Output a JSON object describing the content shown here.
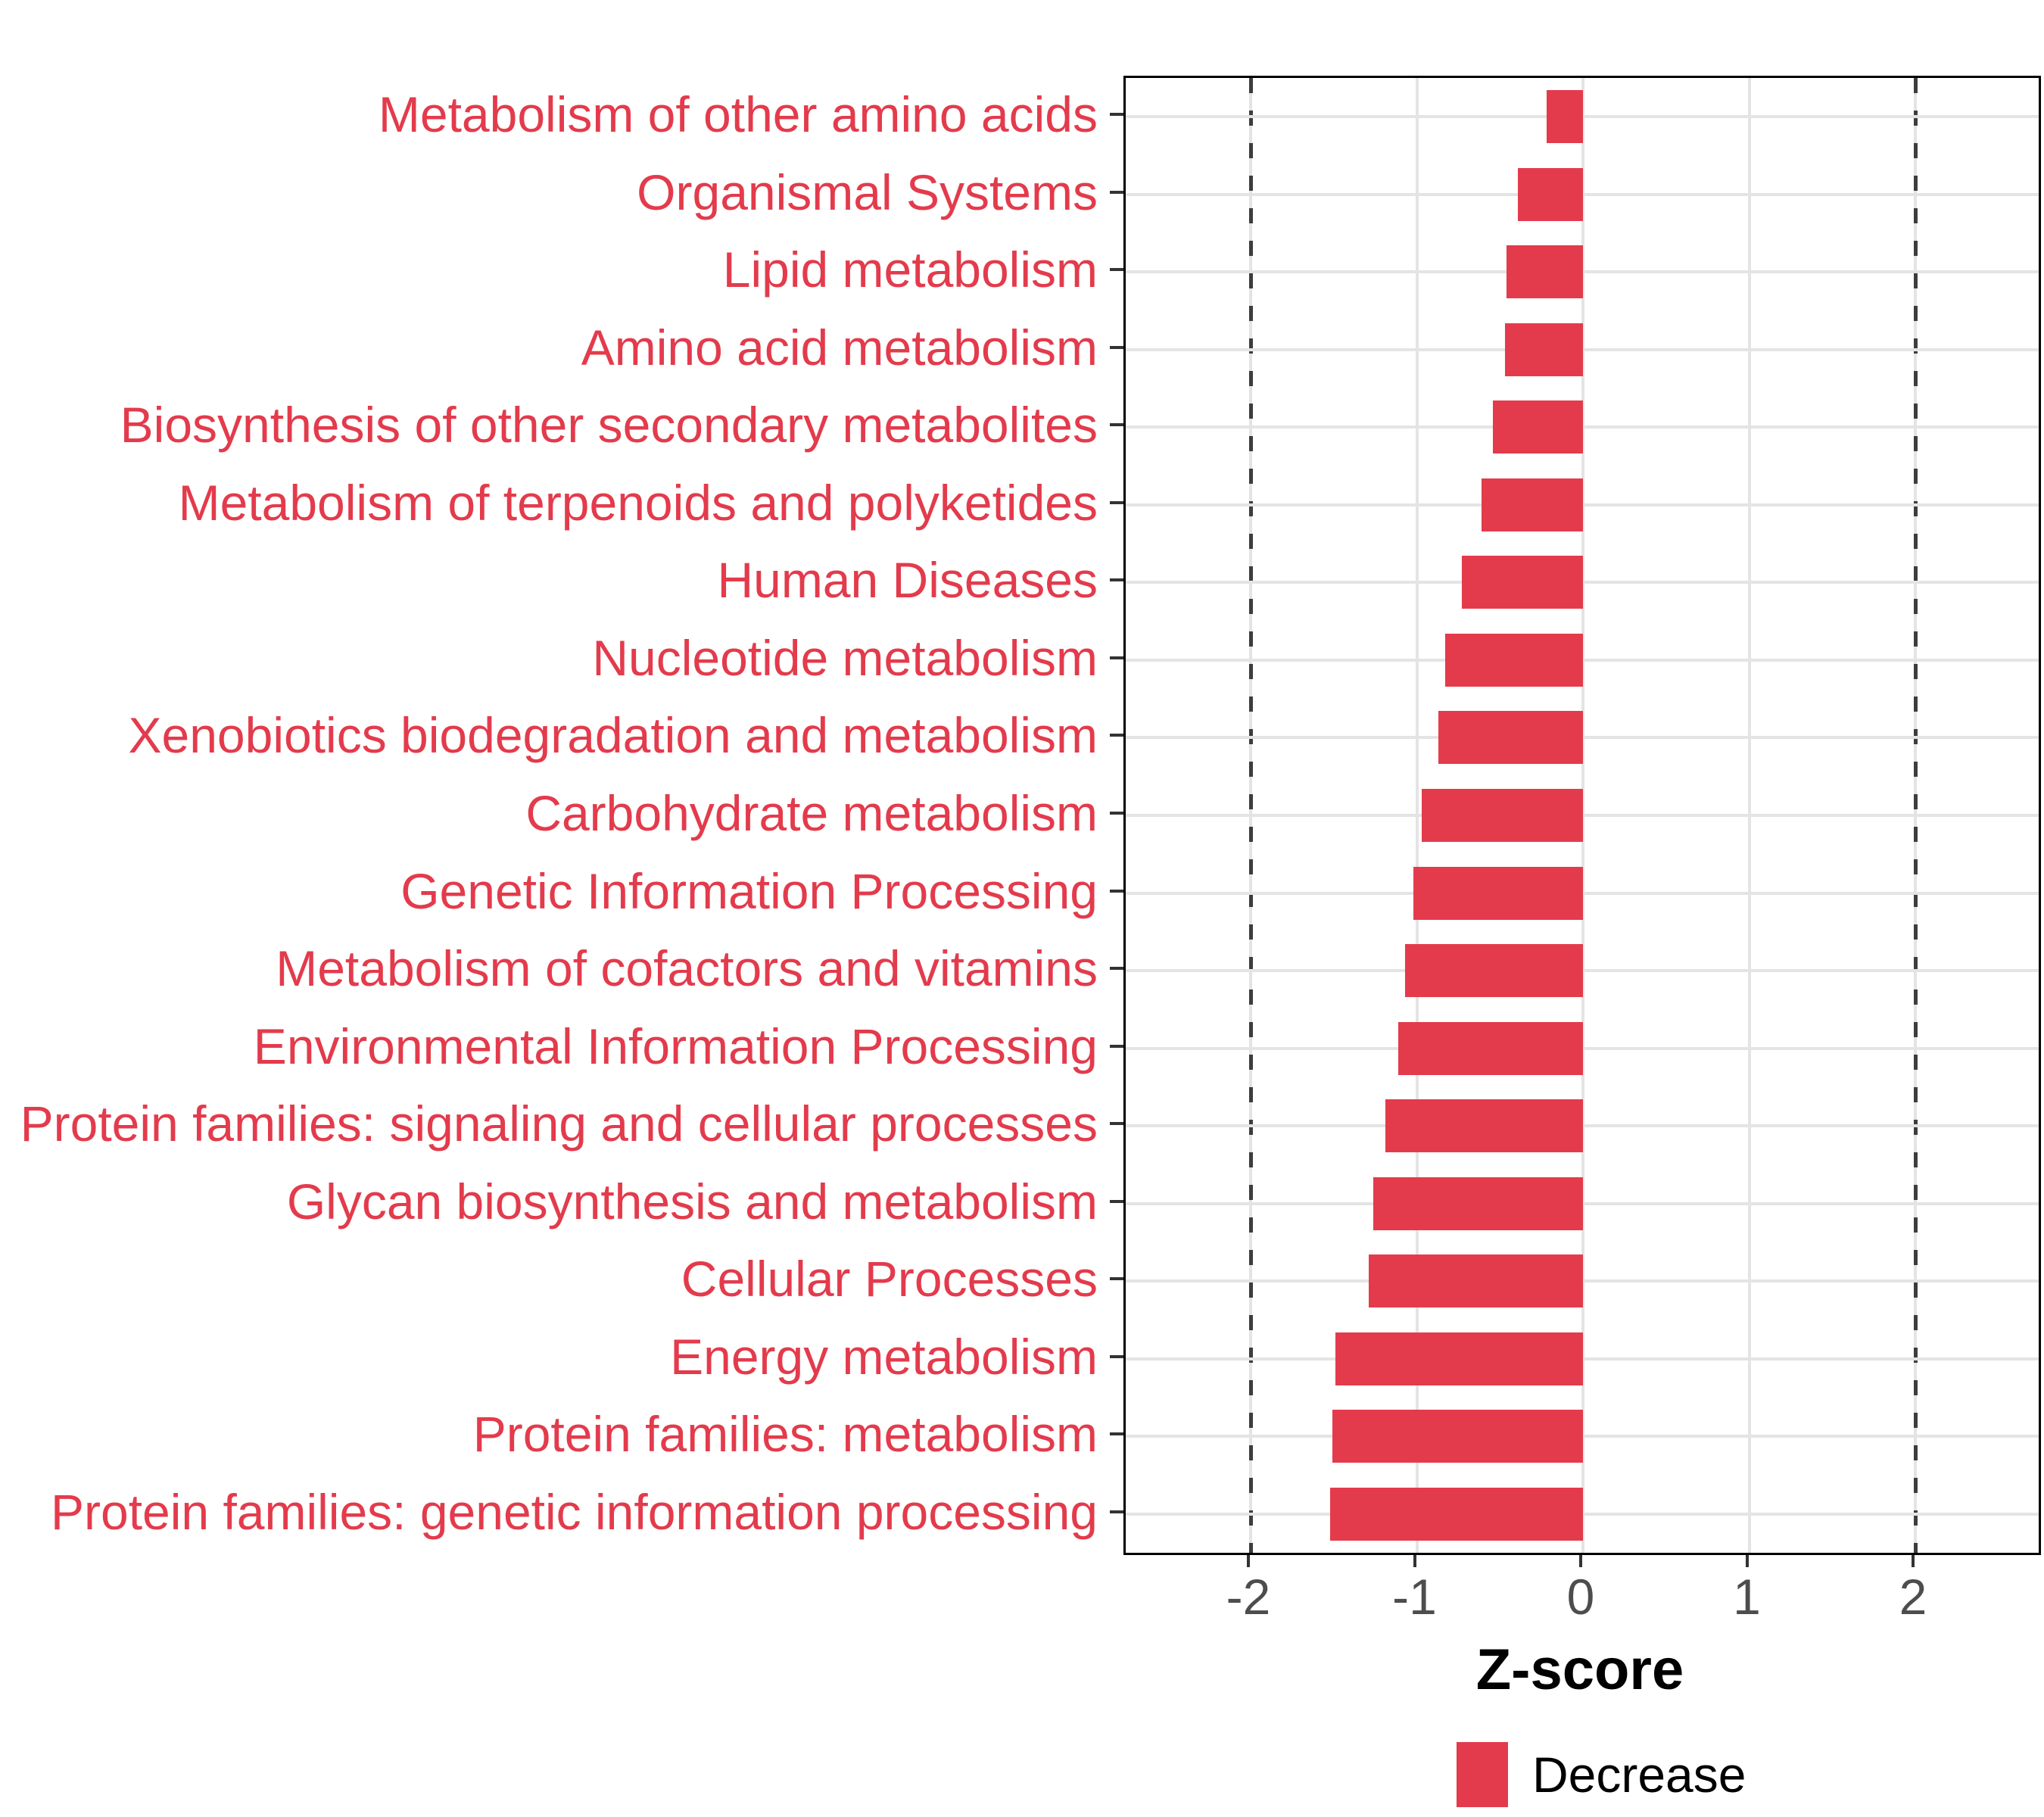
{
  "chart_data": {
    "type": "bar",
    "orientation": "horizontal",
    "title": "",
    "xlabel": "Z-score",
    "categories": [
      "Metabolism of other amino acids",
      "Organismal Systems",
      "Lipid metabolism",
      "Amino acid metabolism",
      "Biosynthesis of other secondary metabolites",
      "Metabolism of terpenoids and polyketides",
      "Human Diseases",
      "Nucleotide metabolism",
      "Xenobiotics biodegradation and metabolism",
      "Carbohydrate metabolism",
      "Genetic Information Processing",
      "Metabolism of cofactors and vitamins",
      "Environmental Information Processing",
      "Protein families: signaling and cellular processes",
      "Glycan biosynthesis and metabolism",
      "Cellular Processes",
      "Energy metabolism",
      "Protein families: metabolism",
      "Protein families: genetic information processing"
    ],
    "values": [
      -0.22,
      -0.39,
      -0.46,
      -0.47,
      -0.54,
      -0.61,
      -0.73,
      -0.83,
      -0.87,
      -0.97,
      -1.02,
      -1.07,
      -1.11,
      -1.19,
      -1.26,
      -1.29,
      -1.49,
      -1.51,
      -1.52
    ],
    "series_name": "Decrease",
    "xlim": [
      -2.75,
      2.74
    ],
    "xtick_values": [
      -2,
      -1,
      0,
      1,
      2
    ],
    "xtick_labels": [
      "-2",
      "-1",
      "0",
      "1",
      "2"
    ],
    "reference_lines": [
      -2,
      2
    ],
    "grid": true,
    "legend_position": "bottom",
    "legend": [
      {
        "label": "Decrease",
        "color": "#e33b4c"
      }
    ],
    "colors": {
      "bar": "#e33b4c",
      "category_label": "#e33b4c",
      "tick_label": "#4d4d4d",
      "gridline": "#e4e4e4",
      "reference_line": "#3d3d3d",
      "axis_title": "#000000",
      "panel_border": "#000000"
    }
  }
}
